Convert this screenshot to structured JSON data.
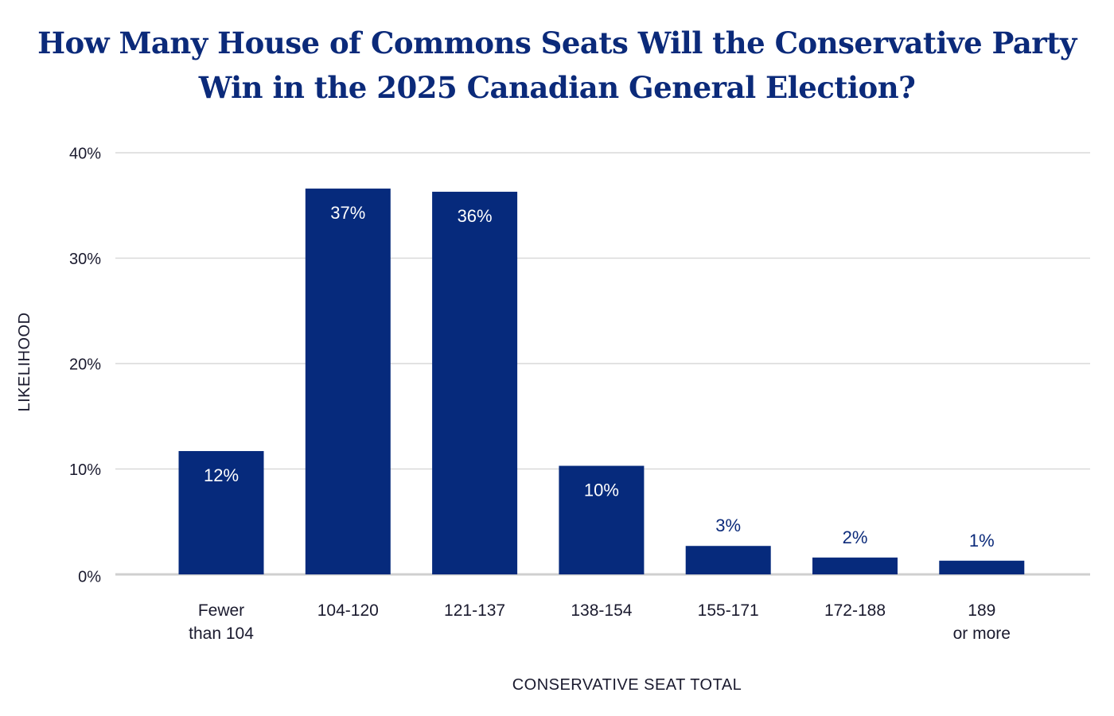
{
  "colors": {
    "bar": "#062a7c",
    "title": "#0b2a7a",
    "grid": "#d9d9d9",
    "baseline": "#cfcfcf",
    "text": "#1a1a2e"
  },
  "chart_data": {
    "type": "bar",
    "title": [
      "How Many House of Commons Seats Will the Conservative Party",
      "Win in the 2025 Canadian General Election?"
    ],
    "xlabel": "CONSERVATIVE SEAT TOTAL",
    "ylabel": "LIKELIHOOD",
    "categories": [
      [
        "Fewer",
        "than 104"
      ],
      [
        "104-120"
      ],
      [
        "121-137"
      ],
      [
        "138-154"
      ],
      [
        "155-171"
      ],
      [
        "172-188"
      ],
      [
        "189",
        "or more"
      ]
    ],
    "values": [
      11.7,
      36.6,
      36.3,
      10.3,
      2.7,
      1.6,
      1.3
    ],
    "data_labels": [
      "12%",
      "37%",
      "36%",
      "10%",
      "3%",
      "2%",
      "1%"
    ],
    "yticks": [
      0,
      10,
      20,
      30,
      40
    ],
    "ytick_labels": [
      "0%",
      "10%",
      "20%",
      "30%",
      "40%"
    ],
    "ylim": [
      0,
      40
    ],
    "grid": true,
    "legend": "none"
  }
}
